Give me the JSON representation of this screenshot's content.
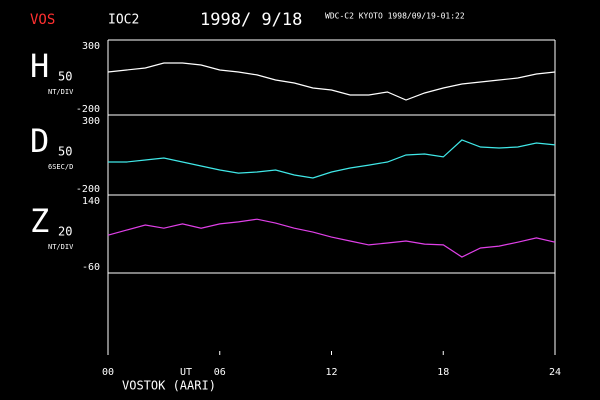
{
  "header": {
    "station": "VOS",
    "code": "IOC2",
    "date": "1998/ 9/18",
    "source": "WDC-C2 KYOTO 1998/09/19-01:22"
  },
  "x_axis": {
    "xlim": [
      0,
      24
    ],
    "xticks": [
      {
        "value": 0,
        "label": "00"
      },
      {
        "value": 6,
        "label": "06"
      },
      12,
      18,
      24
    ],
    "label": "UT"
  },
  "footer": "VOSTOK (AARI)",
  "chart_data": [
    {
      "type": "line",
      "title": "H",
      "scale": "50",
      "unit": "NT/DIV",
      "color": "#ffffff",
      "x": [
        0,
        1,
        2,
        3,
        4,
        5,
        6,
        7,
        8,
        9,
        10,
        11,
        12,
        13,
        14,
        15,
        16,
        17,
        18,
        19,
        20,
        21,
        22,
        23,
        24
      ],
      "values": [
        87,
        100,
        113,
        147,
        147,
        133,
        100,
        87,
        67,
        33,
        13,
        -20,
        -33,
        -67,
        -67,
        -47,
        -100,
        -53,
        -20,
        7,
        20,
        33,
        47,
        73,
        87
      ],
      "ylim": [
        -200,
        300
      ],
      "yticks": [
        -200,
        300
      ]
    },
    {
      "type": "line",
      "title": "D",
      "scale": "50",
      "unit": "6SEC/D",
      "color": "#40e8e8",
      "x": [
        0,
        1,
        2,
        3,
        4,
        5,
        6,
        7,
        8,
        9,
        10,
        11,
        12,
        13,
        14,
        15,
        16,
        17,
        18,
        19,
        20,
        21,
        22,
        23,
        24
      ],
      "values": [
        6,
        6,
        19,
        31,
        6,
        -19,
        -44,
        -63,
        -56,
        -44,
        -75,
        -94,
        -56,
        -31,
        -13,
        6,
        50,
        56,
        38,
        144,
        100,
        94,
        100,
        125,
        113
      ],
      "ylim": [
        -200,
        300
      ],
      "yticks": [
        -200,
        300
      ]
    },
    {
      "type": "line",
      "title": "Z",
      "scale": "20",
      "unit": "NT/DIV",
      "color": "#e040e8",
      "x": [
        0,
        1,
        2,
        3,
        4,
        5,
        6,
        7,
        8,
        9,
        10,
        11,
        12,
        13,
        14,
        15,
        16,
        17,
        18,
        19,
        20,
        21,
        22,
        23,
        24
      ],
      "values": [
        37,
        50,
        63,
        55,
        66,
        55,
        66,
        71,
        78,
        68,
        55,
        45,
        32,
        22,
        12,
        17,
        22,
        14,
        12,
        -19,
        4,
        9,
        19,
        30,
        19
      ],
      "ylim": [
        -60,
        140
      ],
      "yticks": [
        -60,
        140
      ]
    }
  ]
}
